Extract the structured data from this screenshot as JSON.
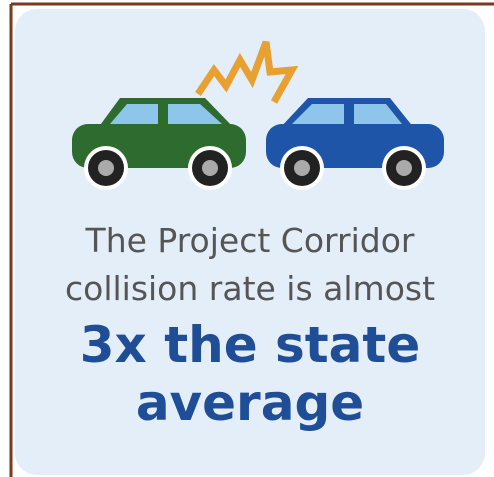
{
  "text": {
    "line1": "The Project Corridor",
    "line2": "collision rate is almost",
    "highlight1": "3x the state",
    "highlight2": "average"
  }
}
